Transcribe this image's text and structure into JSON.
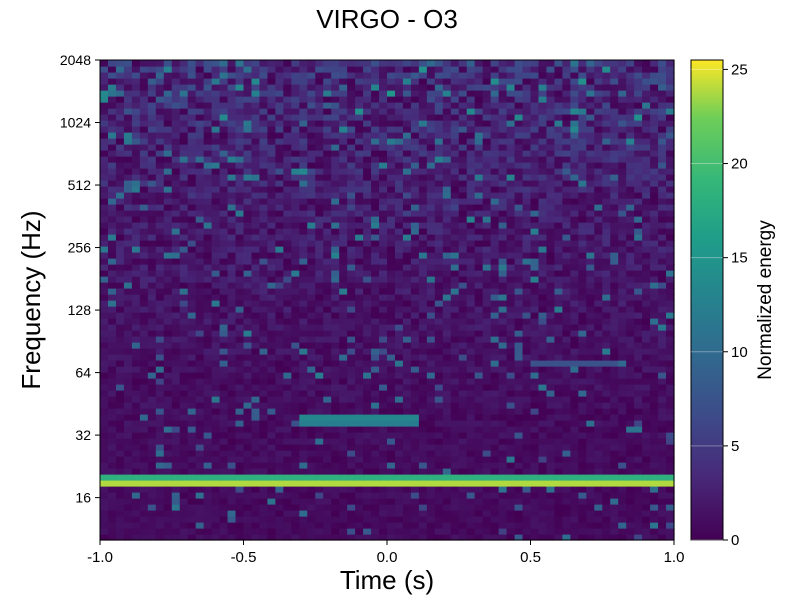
{
  "chart_data": {
    "type": "heatmap",
    "title": "VIRGO - O3",
    "xlabel": "Time (s)",
    "ylabel": "Frequency (Hz)",
    "xlim": [
      -1.0,
      1.0
    ],
    "ylim": [
      10,
      2048
    ],
    "yscale": "log2",
    "x_ticks": [
      "-1.0",
      "-0.5",
      "0.0",
      "0.5",
      "1.0"
    ],
    "y_ticks": [
      "16",
      "32",
      "64",
      "128",
      "256",
      "512",
      "1024",
      "2048"
    ],
    "colorbar": {
      "label": "Normalized energy",
      "range": [
        0,
        25.5
      ],
      "ticks": [
        "0",
        "5",
        "10",
        "15",
        "20",
        "25"
      ],
      "colormap": "viridis"
    },
    "features": [
      {
        "t_start": -1.0,
        "t_end": 1.0,
        "f_hz": 19,
        "energy": 25,
        "note": "strong persistent line"
      },
      {
        "t_start": -0.3,
        "t_end": 0.1,
        "f_hz": 38,
        "energy": 16
      },
      {
        "t_start": 0.5,
        "t_end": 0.8,
        "f_hz": 70,
        "energy": 8
      }
    ]
  }
}
